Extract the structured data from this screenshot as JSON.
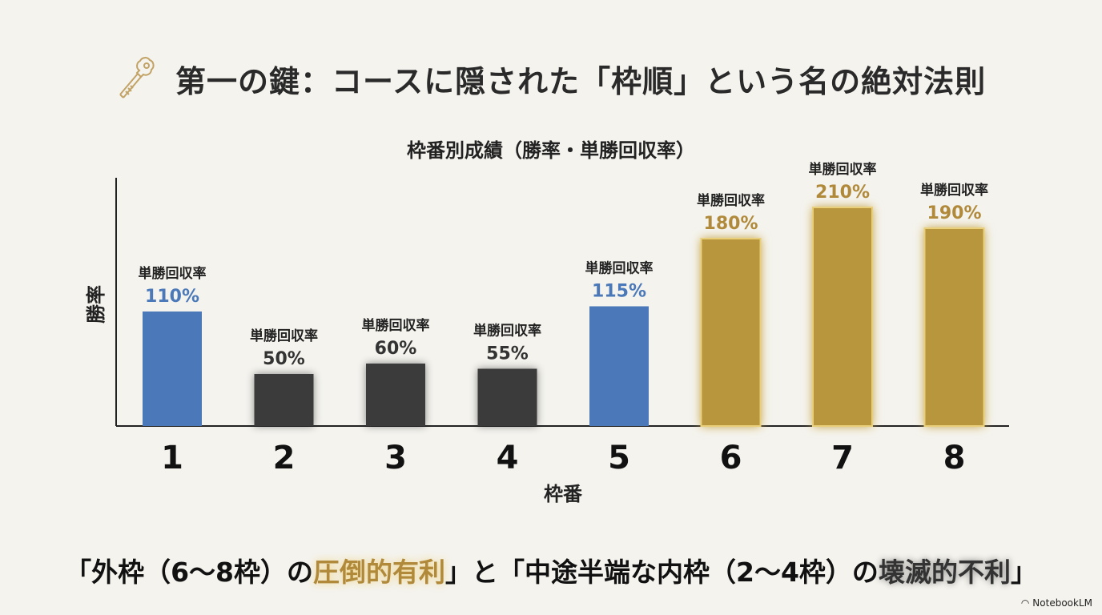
{
  "header": {
    "title": "第一の鍵：コースに隠された「枠順」という名の絶対法則",
    "icon": "key-icon"
  },
  "chart_data": {
    "type": "bar",
    "title": "枠番別成績（勝率・単勝回収率）",
    "xlabel": "枠番",
    "ylabel": "勝率",
    "categories": [
      "1",
      "2",
      "3",
      "4",
      "5",
      "6",
      "7",
      "8"
    ],
    "values": [
      110,
      50,
      60,
      55,
      115,
      180,
      210,
      190
    ],
    "data_labels": [
      "110%",
      "50%",
      "60%",
      "55%",
      "115%",
      "180%",
      "210%",
      "190%"
    ],
    "data_label_caption": "単勝回収率",
    "bar_groups": [
      "blue",
      "dark",
      "dark",
      "dark",
      "blue",
      "gold",
      "gold",
      "gold"
    ],
    "colors": {
      "blue": "#4a78b8",
      "dark": "#3a3a3a",
      "gold": "#b8963e"
    },
    "grid": false,
    "legend": "none"
  },
  "footer": {
    "parts": [
      "「外枠（6〜8枠）の",
      "圧倒的有利",
      "」と「中途半端な内枠（2〜4枠）の",
      "壊滅的不利",
      "」"
    ],
    "brand": "NotebookLM"
  }
}
